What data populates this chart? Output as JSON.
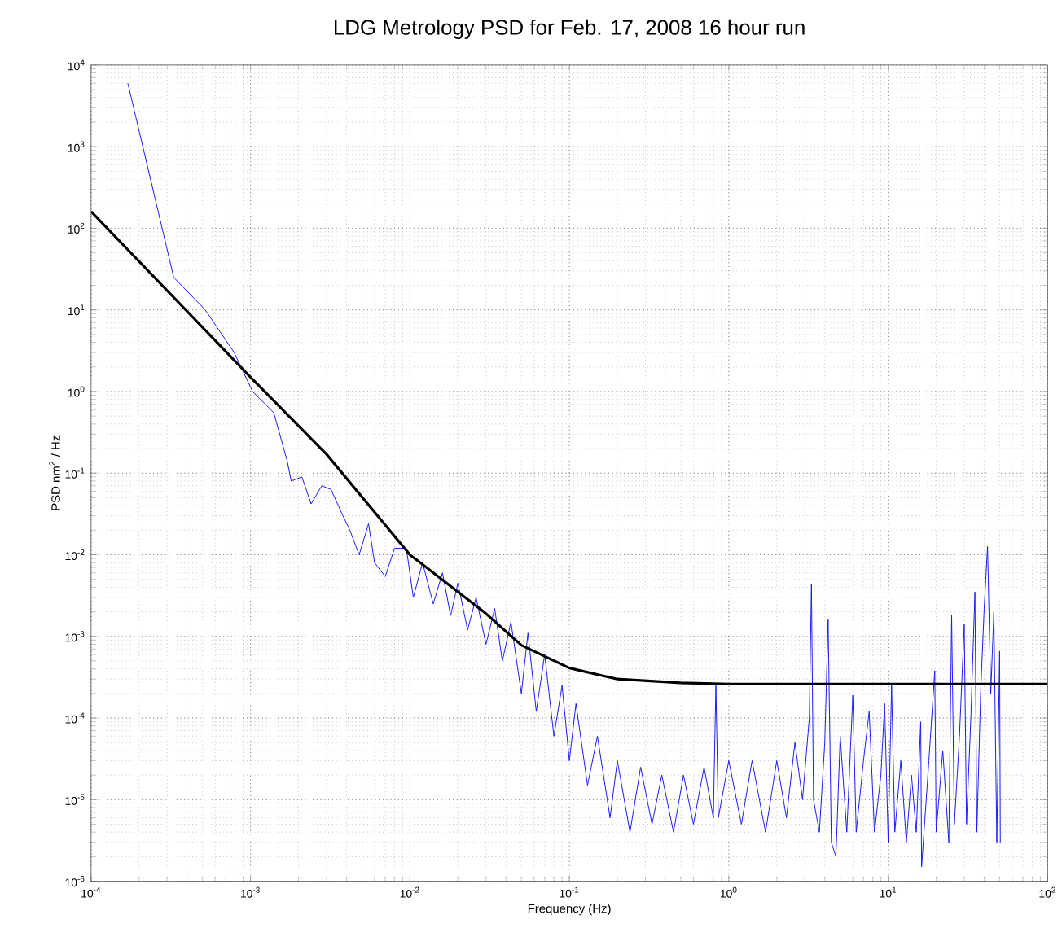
{
  "chart_data": {
    "type": "line",
    "title": "LDG Metrology PSD for Feb. 17, 2008 16 hour run",
    "xlabel": "Frequency (Hz)",
    "ylabel": "PSD nm$^{2}$ / Hz",
    "log": "xy",
    "grid": true,
    "marker": "none",
    "line_style": "solid",
    "xlim": [
      0.0001,
      100
    ],
    "ylim": [
      1e-06,
      10000
    ],
    "xticks": [
      {
        "value": 0.0001,
        "label": "10$^{-4}$"
      },
      {
        "value": 0.001,
        "label": "10$^{-3}$"
      },
      {
        "value": 0.01,
        "label": "10$^{-2}$"
      },
      {
        "value": 0.1,
        "label": "10$^{-1}$"
      },
      {
        "value": 1,
        "label": "10$^{0}$"
      },
      {
        "value": 10,
        "label": "10$^{1}$"
      },
      {
        "value": 100,
        "label": "10$^{2}$"
      }
    ],
    "yticks": [
      {
        "value": 1e-06,
        "label": "10$^{-6}$"
      },
      {
        "value": 1e-05,
        "label": "10$^{-5}$"
      },
      {
        "value": 0.0001,
        "label": "10$^{-4}$"
      },
      {
        "value": 0.001,
        "label": "10$^{-3}$"
      },
      {
        "value": 0.01,
        "label": "10$^{-2}$"
      },
      {
        "value": 0.1,
        "label": "10$^{-1}$"
      },
      {
        "value": 1,
        "label": "10$^{0}$"
      },
      {
        "value": 10,
        "label": "10$^{1}$"
      },
      {
        "value": 100,
        "label": "10$^{2}$"
      },
      {
        "value": 1000,
        "label": "10$^{3}$"
      },
      {
        "value": 10000,
        "label": "10$^{4}$"
      }
    ],
    "series": [
      {
        "color": "#1a1aff",
        "x": [
          0.00017,
          0.00033,
          0.00052,
          0.00079,
          0.00103,
          0.0014,
          0.0017,
          0.0018,
          0.0021,
          0.0024,
          0.0028,
          0.0032,
          0.0038,
          0.0042,
          0.0048,
          0.0055,
          0.006,
          0.007,
          0.008,
          0.0095,
          0.0105,
          0.012,
          0.014,
          0.016,
          0.018,
          0.02,
          0.023,
          0.026,
          0.03,
          0.034,
          0.038,
          0.043,
          0.05,
          0.055,
          0.062,
          0.07,
          0.08,
          0.09,
          0.1,
          0.11,
          0.13,
          0.15,
          0.18,
          0.2,
          0.24,
          0.28,
          0.33,
          0.38,
          0.45,
          0.52,
          0.6,
          0.7,
          0.8,
          0.83,
          0.86,
          1.0,
          1.2,
          1.4,
          1.7,
          2.0,
          2.3,
          2.6,
          2.9,
          3.2,
          3.3,
          3.4,
          3.7,
          4.0,
          4.2,
          4.4,
          4.7,
          5.0,
          5.5,
          6.0,
          6.3,
          7.0,
          7.6,
          8.2,
          9.0,
          9.5,
          10,
          10.5,
          11,
          12,
          13,
          14,
          15,
          16,
          16.2,
          18,
          19.6,
          20,
          22,
          24,
          25,
          26,
          28,
          30,
          31,
          33,
          35,
          36,
          38,
          40,
          42,
          44,
          46,
          48,
          50,
          50.5
        ],
        "values": [
          6000,
          25,
          10,
          3,
          1,
          0.55,
          0.14,
          0.08,
          0.09,
          0.042,
          0.07,
          0.063,
          0.03,
          0.02,
          0.01,
          0.024,
          0.008,
          0.0054,
          0.012,
          0.012,
          0.003,
          0.008,
          0.0025,
          0.006,
          0.0018,
          0.0045,
          0.0012,
          0.003,
          0.0008,
          0.0022,
          0.0005,
          0.0015,
          0.0002,
          0.0011,
          0.00012,
          0.0006,
          6e-05,
          0.00025,
          3e-05,
          0.00015,
          1.5e-05,
          6e-05,
          6e-06,
          3e-05,
          4e-06,
          2.5e-05,
          5e-06,
          2e-05,
          4e-06,
          2e-05,
          5e-06,
          2.5e-05,
          6e-06,
          0.00025,
          6e-06,
          3e-05,
          5e-06,
          3e-05,
          4e-06,
          3e-05,
          6e-06,
          5e-05,
          1e-05,
          0.0001,
          0.0044,
          1e-05,
          4e-06,
          5e-05,
          0.0016,
          3e-06,
          2e-06,
          6e-05,
          4e-06,
          0.00019,
          4e-06,
          3e-05,
          0.00012,
          4e-06,
          2e-05,
          0.00015,
          3e-06,
          0.00025,
          4e-06,
          3e-05,
          3e-06,
          2e-05,
          4e-06,
          9e-05,
          1.5e-06,
          3e-05,
          0.00038,
          4e-06,
          4e-05,
          3e-06,
          0.0018,
          5e-06,
          6e-05,
          0.0014,
          5e-06,
          0.0001,
          0.0035,
          4e-06,
          0.0002,
          0.0022,
          0.0126,
          0.0002,
          0.002,
          3e-06,
          0.00066,
          3e-06
        ]
      },
      {
        "color": "#000000",
        "x": [
          0.0001,
          0.001,
          0.003,
          0.01,
          0.03,
          0.05,
          0.1,
          0.2,
          0.5,
          1,
          10,
          100
        ],
        "values": [
          160,
          1.5,
          0.17,
          0.01,
          0.0019,
          0.00078,
          0.00041,
          0.0003,
          0.00027,
          0.00026,
          0.00026,
          0.00026
        ]
      }
    ]
  }
}
